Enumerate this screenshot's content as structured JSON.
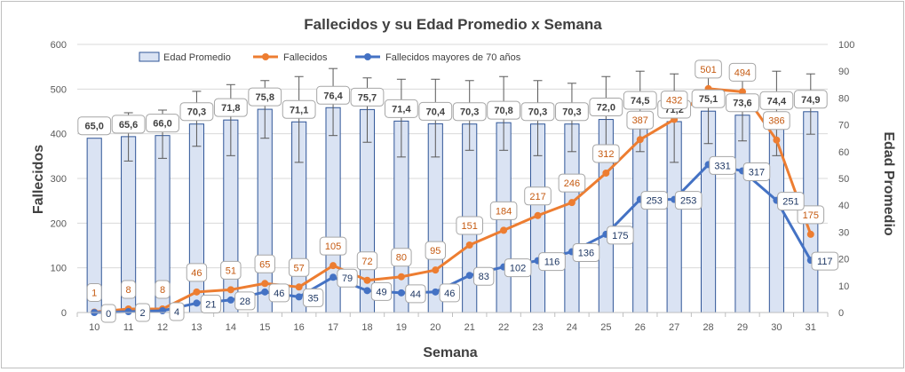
{
  "chart_data": {
    "type": "bar",
    "title": "Fallecidos y su Edad Promedio  x Semana",
    "xlabel": "Semana",
    "ylabel_left": "Fallecidos",
    "ylabel_right": "Edad Promedio",
    "ylim_left": [
      0,
      600
    ],
    "ylim_right": [
      0,
      100
    ],
    "yticks_left": [
      0,
      100,
      200,
      300,
      400,
      500,
      600
    ],
    "yticks_right": [
      0,
      10,
      20,
      30,
      40,
      50,
      60,
      70,
      80,
      90,
      100
    ],
    "grid": true,
    "legend_position": "top",
    "categories": [
      "10",
      "11",
      "12",
      "13",
      "14",
      "15",
      "16",
      "17",
      "18",
      "19",
      "20",
      "21",
      "22",
      "23",
      "24",
      "25",
      "26",
      "27",
      "28",
      "29",
      "30",
      "31"
    ],
    "series": [
      {
        "name": "Edad Promedio",
        "kind": "bar",
        "axis": "right",
        "color": "#dae3f3",
        "border": "#2f5597",
        "values": [
          65.0,
          65.6,
          66.0,
          70.3,
          71.8,
          75.8,
          71.1,
          76.4,
          75.7,
          71.4,
          70.4,
          70.3,
          70.8,
          70.3,
          70.3,
          72.0,
          74.5,
          71.2,
          75.1,
          73.6,
          74.4,
          74.9
        ],
        "labels": [
          "65,0",
          "65,6",
          "66,0",
          "70,3",
          "71,8",
          "75,8",
          "71,1",
          "76,4",
          "75,7",
          "71,4",
          "70,4",
          "70,3",
          "70,8",
          "70,3",
          "70,3",
          "72,0",
          "74,5",
          "71,2",
          "75,1",
          "73,6",
          "74,4",
          "74,9"
        ],
        "error_low": [
          null,
          56.5,
          57.5,
          62.0,
          58.5,
          65.0,
          56.0,
          66.0,
          63.5,
          58.0,
          58.0,
          60.5,
          60.5,
          58.5,
          60.0,
          58.5,
          60.0,
          56.0,
          63.0,
          64.0,
          58.5,
          66.5
        ],
        "error_high": [
          null,
          74.5,
          75.5,
          82.5,
          85.0,
          86.5,
          88.0,
          91.0,
          87.5,
          87.0,
          87.0,
          86.5,
          88.0,
          86.5,
          85.5,
          88.0,
          90.0,
          89.0,
          88.0,
          88.0,
          90.0,
          89.0
        ]
      },
      {
        "name": "Fallecidos",
        "kind": "line",
        "axis": "left",
        "color": "#ed7d31",
        "values": [
          1,
          8,
          8,
          46,
          51,
          65,
          57,
          105,
          72,
          80,
          95,
          151,
          184,
          217,
          246,
          312,
          387,
          432,
          501,
          494,
          386,
          175
        ]
      },
      {
        "name": "Fallecidos mayores de 70 años",
        "kind": "line",
        "axis": "left",
        "color": "#4472c4",
        "values": [
          0,
          2,
          4,
          21,
          28,
          46,
          35,
          79,
          49,
          44,
          46,
          83,
          102,
          116,
          136,
          175,
          253,
          253,
          331,
          317,
          251,
          117
        ]
      }
    ]
  }
}
